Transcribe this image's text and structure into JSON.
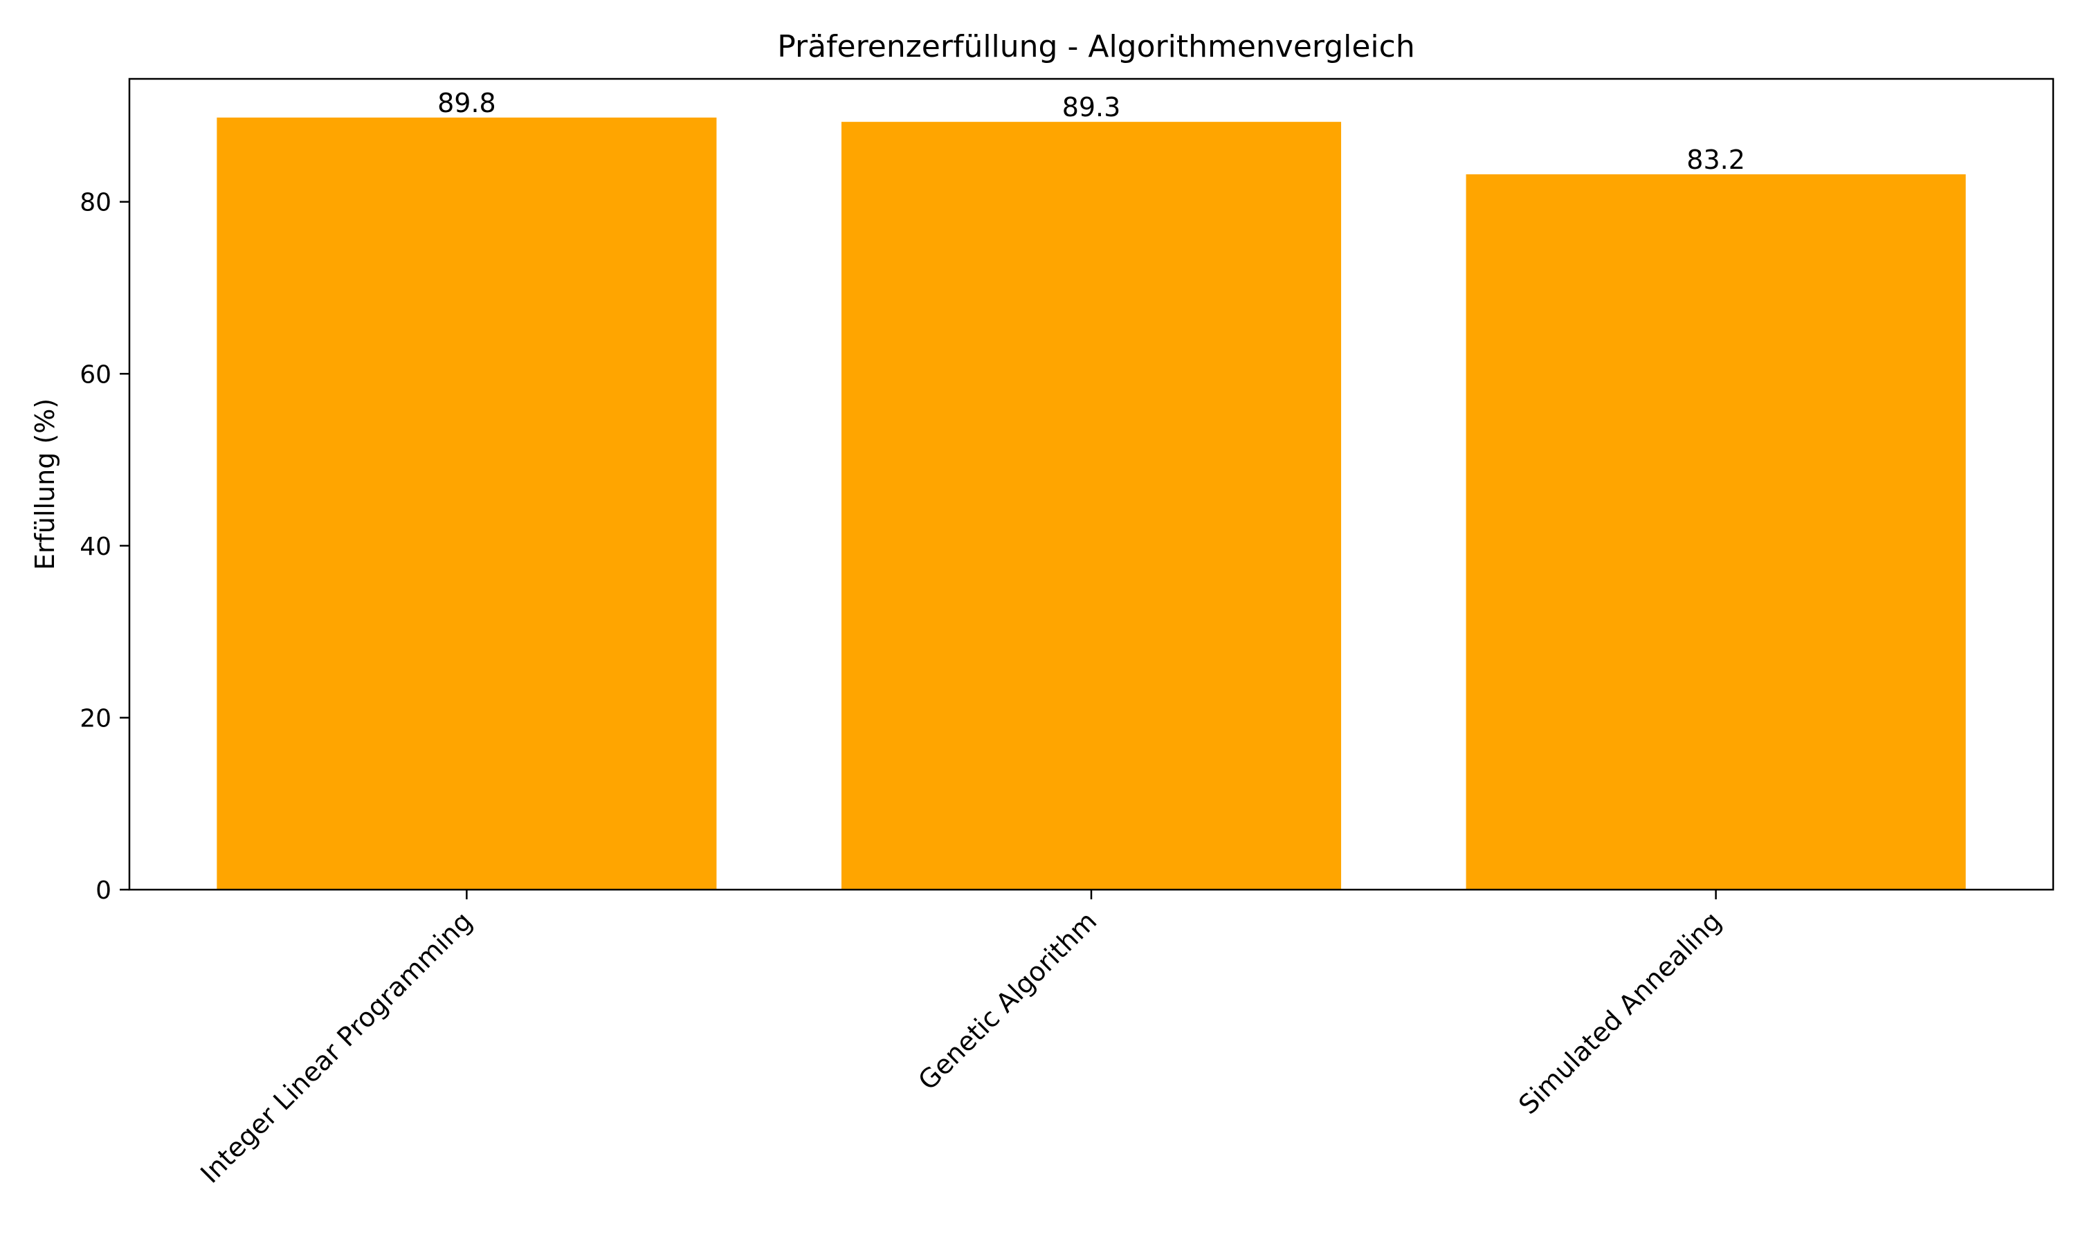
{
  "chart_data": {
    "type": "bar",
    "title": "Präferenzerfüllung - Algorithmenvergleich",
    "xlabel": "",
    "ylabel": "Erfüllung (%)",
    "categories": [
      "Integer Linear Programming",
      "Genetic Algorithm",
      "Simulated Annealing"
    ],
    "values": [
      89.8,
      89.3,
      83.2
    ],
    "data_labels": [
      "89.8",
      "89.3",
      "83.2"
    ],
    "ylim": [
      0,
      94.3
    ],
    "yticks": [
      0,
      20,
      40,
      60,
      80
    ],
    "ytick_labels": [
      "0",
      "20",
      "40",
      "60",
      "80"
    ],
    "bar_color": "#FFA500",
    "grid": false,
    "legend": "none",
    "xtick_rotation": "45 degrees"
  }
}
